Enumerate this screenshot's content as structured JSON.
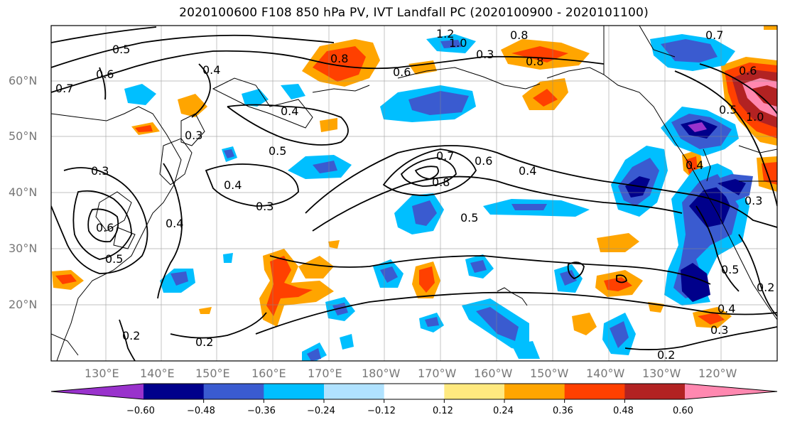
{
  "title": "2020100600 F108 850 hPa PV, IVT Landfall PC (2020100900 - 2020101100)",
  "lat_labels": [
    "60°N",
    "50°N",
    "40°N",
    "30°N",
    "20°N"
  ],
  "lon_labels": [
    "130°E",
    "140°E",
    "150°E",
    "160°E",
    "170°E",
    "180°W",
    "170°W",
    "160°W",
    "150°W",
    "140°W",
    "130°W",
    "120°W"
  ],
  "colorbar": {
    "colors": [
      "#9932cc",
      "#00008b",
      "#3a5bd0",
      "#00bfff",
      "#b0e2ff",
      "#ffffff",
      "#ffe97f",
      "#ffa500",
      "#ff4000",
      "#b22222",
      "#ff88b0"
    ],
    "ticks": [
      "−0.60",
      "−0.48",
      "−0.36",
      "−0.24",
      "−0.12",
      "0.12",
      "0.24",
      "0.36",
      "0.48",
      "0.60"
    ]
  },
  "contour_labels": [
    "1.2",
    "1.0",
    "0.8",
    "0.8",
    "0.8",
    "0.7",
    "0.3",
    "0.6",
    "0.5",
    "0.6",
    "0.7",
    "0.4",
    "0.4",
    "0.5",
    "0.3",
    "0.4",
    "0.3",
    "0.3",
    "0.6",
    "0.4",
    "0.7",
    "0.6",
    "0.8",
    "0.4",
    "0.5",
    "0.5",
    "0.2",
    "0.2",
    "0.2",
    "0.4",
    "0.3",
    "0.6",
    "1.0",
    "0.5",
    "0.5",
    "0.3",
    "0.4",
    "0.2"
  ]
}
